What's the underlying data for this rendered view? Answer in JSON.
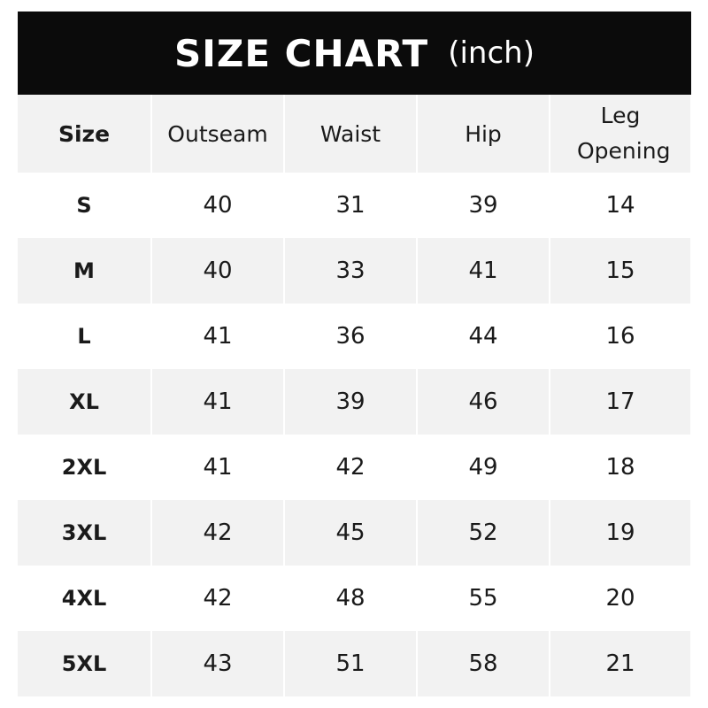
{
  "title": {
    "main": "SIZE CHART",
    "unit": "(inch)"
  },
  "headers": [
    "Size",
    "Outseam",
    "Waist",
    "Hip",
    "Leg Opening"
  ],
  "rows": [
    [
      "S",
      "40",
      "31",
      "39",
      "14"
    ],
    [
      "M",
      "40",
      "33",
      "41",
      "15"
    ],
    [
      "L",
      "41",
      "36",
      "44",
      "16"
    ],
    [
      "XL",
      "41",
      "39",
      "46",
      "17"
    ],
    [
      "2XL",
      "41",
      "42",
      "49",
      "18"
    ],
    [
      "3XL",
      "42",
      "45",
      "52",
      "19"
    ],
    [
      "4XL",
      "42",
      "48",
      "55",
      "20"
    ],
    [
      "5XL",
      "43",
      "51",
      "58",
      "21"
    ]
  ],
  "colors": {
    "header_bg": "#0b0b0b",
    "stripe": "#f2f2f2",
    "text": "#1a1a1a"
  }
}
